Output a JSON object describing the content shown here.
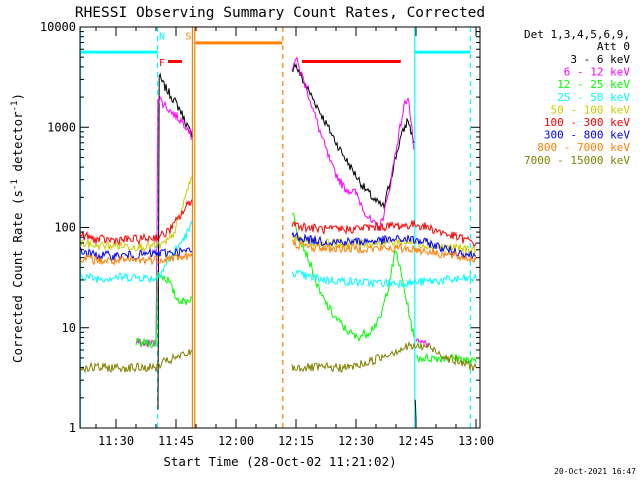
{
  "chart_data": {
    "type": "line",
    "title": "RHESSI Observing Summary Count Rates, Corrected",
    "xlabel": "Start Time (28-Oct-02 11:21:02)",
    "ylabel_main": "Corrected Count Rate (s",
    "ylabel_sup1": "-1",
    "ylabel_mid": " detector",
    "ylabel_sup2": "-1",
    "ylabel_end": ")",
    "y_scale": "log",
    "ylim": [
      1,
      10000
    ],
    "xlim_minutes_after_11_00": [
      21.0,
      121.0
    ],
    "x_ticks": [
      {
        "m": 30,
        "label": "11:30"
      },
      {
        "m": 45,
        "label": "11:45"
      },
      {
        "m": 60,
        "label": "12:00"
      },
      {
        "m": 75,
        "label": "12:15"
      },
      {
        "m": 90,
        "label": "12:30"
      },
      {
        "m": 105,
        "label": "12:45"
      },
      {
        "m": 120,
        "label": "13:00"
      }
    ],
    "y_ticks": [
      {
        "v": 1,
        "label": "1"
      },
      {
        "v": 10,
        "label": "10"
      },
      {
        "v": 100,
        "label": "100"
      },
      {
        "v": 1000,
        "label": "1000"
      },
      {
        "v": 10000,
        "label": "10000"
      }
    ],
    "legend_header": [
      "Det 1,3,4,5,6,9,",
      "Att 0"
    ],
    "legend_position": "right",
    "timestamp": "20-Oct-2021 16:47",
    "series": [
      {
        "name": "3 - 6 keV",
        "color": "#000000",
        "segments": [
          [
            [
              40.5,
              1.5
            ],
            [
              40.8,
              3200
            ],
            [
              42,
              2600
            ],
            [
              44,
              2000
            ],
            [
              46,
              1500
            ],
            [
              48,
              1000
            ],
            [
              49,
              800
            ]
          ],
          [
            [
              74,
              3500
            ],
            [
              74.5,
              4500
            ],
            [
              77,
              2800
            ],
            [
              80,
              1700
            ],
            [
              83,
              1000
            ],
            [
              86,
              600
            ],
            [
              89,
              380
            ],
            [
              92,
              250
            ],
            [
              95,
              180
            ],
            [
              97,
              160
            ],
            [
              99,
              350
            ],
            [
              101,
              750
            ],
            [
              103,
              1200
            ],
            [
              104.5,
              700
            ]
          ],
          [
            [
              104.8,
              2
            ],
            [
              105,
              1.2
            ]
          ]
        ]
      },
      {
        "name": "6 - 12 keV",
        "color": "#ff00ff",
        "segments": [
          [
            [
              35,
              7
            ],
            [
              40,
              7
            ],
            [
              40.5,
              2000
            ],
            [
              42,
              1700
            ],
            [
              44,
              1400
            ],
            [
              46,
              1200
            ],
            [
              48,
              1000
            ],
            [
              49,
              750
            ]
          ],
          [
            [
              74,
              4000
            ],
            [
              75,
              4800
            ],
            [
              78,
              2200
            ],
            [
              81,
              900
            ],
            [
              84,
              400
            ],
            [
              87,
              250
            ],
            [
              90,
              220
            ],
            [
              92,
              150
            ],
            [
              94,
              110
            ],
            [
              96,
              100
            ],
            [
              98,
              200
            ],
            [
              100,
              600
            ],
            [
              102,
              1600
            ],
            [
              103,
              2100
            ],
            [
              104.5,
              600
            ]
          ],
          [
            [
              105,
              7
            ],
            [
              108,
              7
            ]
          ]
        ]
      },
      {
        "name": "12 - 25 keV",
        "color": "#00ff00",
        "segments": [
          [
            [
              35,
              7
            ],
            [
              40,
              7
            ],
            [
              40.5,
              35
            ],
            [
              43,
              30
            ],
            [
              45,
              20
            ],
            [
              47,
              18
            ],
            [
              49,
              20
            ]
          ],
          [
            [
              74,
              150
            ],
            [
              75,
              100
            ],
            [
              78,
              50
            ],
            [
              81,
              22
            ],
            [
              84,
              14
            ],
            [
              87,
              10
            ],
            [
              90,
              8
            ],
            [
              93,
              9
            ],
            [
              96,
              12
            ],
            [
              98,
              25
            ],
            [
              100,
              60
            ],
            [
              102,
              25
            ],
            [
              104.5,
              8
            ]
          ],
          [
            [
              105,
              5
            ],
            [
              110,
              5
            ],
            [
              115,
              5
            ],
            [
              120,
              4.5
            ]
          ]
        ]
      },
      {
        "name": "25 - 50 keV",
        "color": "#00ffff",
        "segments": [
          [
            [
              21,
              33
            ],
            [
              25,
              31
            ],
            [
              30,
              32
            ],
            [
              35,
              32
            ],
            [
              40,
              31
            ],
            [
              42,
              40
            ],
            [
              45,
              60
            ],
            [
              48,
              90
            ],
            [
              49,
              110
            ]
          ],
          [
            [
              74,
              36
            ],
            [
              78,
              32
            ],
            [
              83,
              30
            ],
            [
              88,
              29
            ],
            [
              93,
              28
            ],
            [
              98,
              28
            ],
            [
              103,
              28
            ],
            [
              108,
              29
            ],
            [
              113,
              30
            ],
            [
              120,
              31
            ]
          ]
        ]
      },
      {
        "name": "50 - 100 keV",
        "color": "#cccc00",
        "segments": [
          [
            [
              21,
              70
            ],
            [
              25,
              66
            ],
            [
              30,
              66
            ],
            [
              35,
              65
            ],
            [
              40,
              65
            ],
            [
              42,
              68
            ],
            [
              44,
              80
            ],
            [
              46,
              130
            ],
            [
              48,
              250
            ],
            [
              49,
              320
            ]
          ],
          [
            [
              74,
              80
            ],
            [
              78,
              72
            ],
            [
              83,
              70
            ],
            [
              88,
              69
            ],
            [
              93,
              70
            ],
            [
              98,
              72
            ],
            [
              103,
              72
            ],
            [
              108,
              67
            ],
            [
              113,
              63
            ],
            [
              120,
              60
            ]
          ]
        ]
      },
      {
        "name": "100 - 300 keV",
        "color": "#ff0000",
        "segments": [
          [
            [
              21,
              85
            ],
            [
              25,
              76
            ],
            [
              30,
              75
            ],
            [
              35,
              76
            ],
            [
              40,
              80
            ],
            [
              42,
              85
            ],
            [
              44,
              100
            ],
            [
              46,
              130
            ],
            [
              48,
              170
            ],
            [
              49,
              190
            ]
          ],
          [
            [
              74,
              110
            ],
            [
              78,
              100
            ],
            [
              83,
              95
            ],
            [
              88,
              96
            ],
            [
              93,
              100
            ],
            [
              98,
              103
            ],
            [
              103,
              105
            ],
            [
              105,
              108
            ],
            [
              108,
              100
            ],
            [
              113,
              85
            ],
            [
              120,
              70
            ]
          ]
        ]
      },
      {
        "name": "300 - 800 keV",
        "color": "#0000ff",
        "segments": [
          [
            [
              21,
              58
            ],
            [
              25,
              53
            ],
            [
              30,
              52
            ],
            [
              35,
              53
            ],
            [
              40,
              55
            ],
            [
              45,
              57
            ],
            [
              49,
              58
            ]
          ],
          [
            [
              74,
              85
            ],
            [
              78,
              76
            ],
            [
              83,
              72
            ],
            [
              88,
              72
            ],
            [
              93,
              73
            ],
            [
              98,
              75
            ],
            [
              103,
              77
            ],
            [
              108,
              70
            ],
            [
              113,
              60
            ],
            [
              120,
              52
            ]
          ]
        ]
      },
      {
        "name": "800 - 7000 keV",
        "color": "#ff8000",
        "segments": [
          [
            [
              21,
              50
            ],
            [
              25,
              47
            ],
            [
              30,
              46
            ],
            [
              35,
              47
            ],
            [
              40,
              48
            ],
            [
              45,
              50
            ],
            [
              49,
              52
            ]
          ],
          [
            [
              74,
              70
            ],
            [
              78,
              64
            ],
            [
              83,
              62
            ],
            [
              88,
              62
            ],
            [
              93,
              62
            ],
            [
              98,
              62
            ],
            [
              103,
              62
            ],
            [
              108,
              58
            ],
            [
              113,
              53
            ],
            [
              120,
              48
            ]
          ]
        ]
      },
      {
        "name": "7000 - 15000 keV",
        "color": "#808000",
        "segments": [
          [
            [
              21,
              4
            ],
            [
              25,
              4
            ],
            [
              30,
              4
            ],
            [
              35,
              4
            ],
            [
              40,
              4
            ],
            [
              42,
              4.5
            ],
            [
              45,
              5
            ],
            [
              48,
              5.5
            ],
            [
              49,
              6
            ]
          ],
          [
            [
              74,
              4
            ],
            [
              78,
              4
            ],
            [
              83,
              4
            ],
            [
              88,
              4
            ],
            [
              93,
              4.5
            ],
            [
              98,
              5.5
            ],
            [
              103,
              6.5
            ],
            [
              108,
              6.5
            ],
            [
              113,
              5
            ],
            [
              120,
              4
            ]
          ]
        ]
      }
    ],
    "vertical_lines": [
      {
        "m": 21.1,
        "color": "#00ffff",
        "style": "solid"
      },
      {
        "m": 40.4,
        "color": "#00ffff",
        "style": "dashed"
      },
      {
        "m": 49.1,
        "color": "#ff8000",
        "style": "solid"
      },
      {
        "m": 49.7,
        "color": "#ff8000",
        "style": "solid"
      },
      {
        "m": 71.7,
        "color": "#ff8000",
        "style": "dashed"
      },
      {
        "m": 104.7,
        "color": "#00ffff",
        "style": "solid"
      },
      {
        "m": 118.6,
        "color": "#00ffff",
        "style": "dashed"
      }
    ],
    "flag_bars": [
      {
        "label": "",
        "color": "#00ffff",
        "start": 21.1,
        "end": 40.4,
        "level": 5620
      },
      {
        "label": "",
        "color": "#00ffff",
        "start": 104.7,
        "end": 118.6,
        "level": 5620
      },
      {
        "label": "S",
        "color": "#ff8000",
        "start": 49.9,
        "end": 71.5,
        "level": 6940
      },
      {
        "label": "F",
        "color": "#ff0000",
        "start": 43.0,
        "end": 46.5,
        "level": 4530
      },
      {
        "label": "",
        "color": "#ff0000",
        "start": 76.5,
        "end": 101.2,
        "level": 4530
      }
    ],
    "flag_labels": [
      {
        "label": "N",
        "color": "#00ffff",
        "m": 41.5,
        "level": 8200
      },
      {
        "label": "F",
        "color": "#ff0000",
        "m": 41.5,
        "level": 4500
      },
      {
        "label": "S",
        "color": "#ff8000",
        "m": 48.1,
        "level": 8200
      }
    ]
  }
}
